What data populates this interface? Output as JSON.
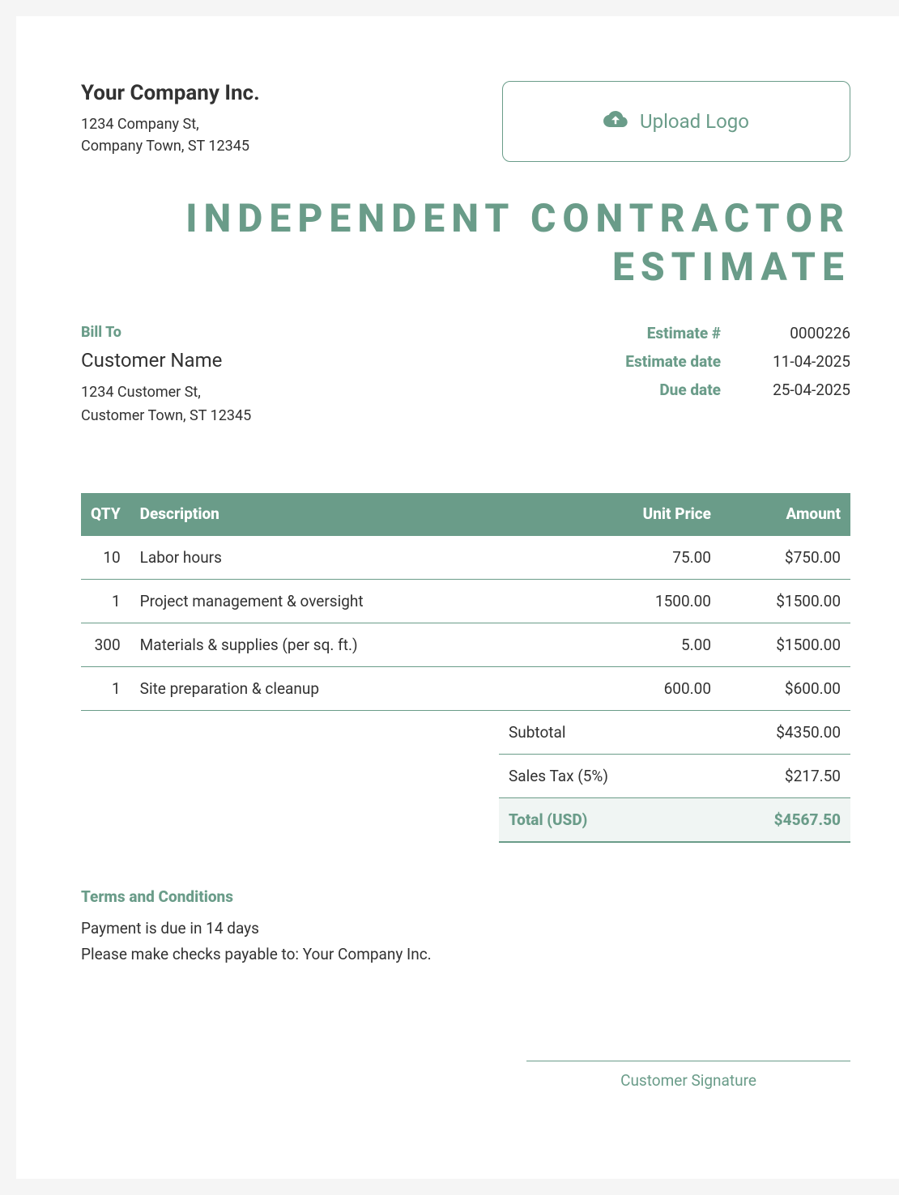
{
  "colors": {
    "accent": "#6a9c89",
    "text": "#323232",
    "header_bg": "#6a9c89",
    "header_text": "#ffffff",
    "total_bg": "#f0f5f3",
    "page_bg": "#ffffff"
  },
  "company": {
    "name": "Your Company Inc.",
    "address_line1": "1234 Company St,",
    "address_line2": "Company Town, ST 12345"
  },
  "upload": {
    "label": "Upload Logo"
  },
  "title_line1": "INDEPENDENT CONTRACTOR",
  "title_line2": "ESTIMATE",
  "bill_to": {
    "heading": "Bill To",
    "name": "Customer Name",
    "address_line1": "1234 Customer St,",
    "address_line2": "Customer Town, ST 12345"
  },
  "meta": {
    "estimate_num_label": "Estimate #",
    "estimate_num": "0000226",
    "estimate_date_label": "Estimate date",
    "estimate_date": "11-04-2025",
    "due_date_label": "Due date",
    "due_date": "25-04-2025"
  },
  "table": {
    "columns": {
      "qty": "QTY",
      "description": "Description",
      "unit_price": "Unit Price",
      "amount": "Amount"
    },
    "rows": [
      {
        "qty": "10",
        "desc": "Labor hours",
        "unit": "75.00",
        "amount": "$750.00"
      },
      {
        "qty": "1",
        "desc": "Project management & oversight",
        "unit": "1500.00",
        "amount": "$1500.00"
      },
      {
        "qty": "300",
        "desc": "Materials & supplies (per sq. ft.)",
        "unit": "5.00",
        "amount": "$1500.00"
      },
      {
        "qty": "1",
        "desc": "Site preparation & cleanup",
        "unit": "600.00",
        "amount": "$600.00"
      }
    ]
  },
  "totals": {
    "subtotal_label": "Subtotal",
    "subtotal": "$4350.00",
    "tax_label": "Sales Tax (5%)",
    "tax": "$217.50",
    "total_label": "Total (USD)",
    "total": "$4567.50"
  },
  "terms": {
    "heading": "Terms and Conditions",
    "line1": "Payment is due in 14 days",
    "line2": "Please make checks payable to: Your Company Inc."
  },
  "signature": {
    "label": "Customer Signature"
  }
}
